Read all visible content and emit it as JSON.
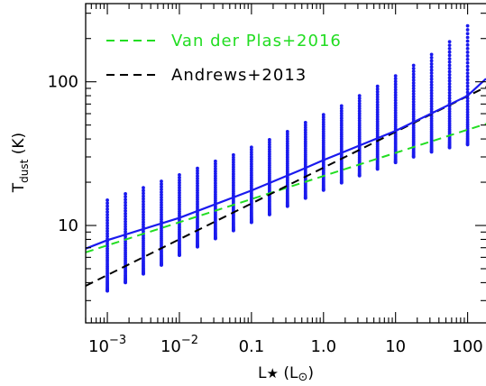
{
  "chart_data": {
    "type": "scatter",
    "xscale": "log",
    "yscale": "log",
    "xlim": [
      0.0005,
      180
    ],
    "ylim": [
      2.1,
      350
    ],
    "xticks": [
      {
        "value": 0.001,
        "mant": "10",
        "exp": "−3"
      },
      {
        "value": 0.01,
        "mant": "10",
        "exp": "−2"
      },
      {
        "value": 0.1,
        "mant": "0.1",
        "exp": ""
      },
      {
        "value": 1,
        "mant": "1.0",
        "exp": ""
      },
      {
        "value": 10,
        "mant": "10",
        "exp": ""
      },
      {
        "value": 100,
        "mant": "100",
        "exp": ""
      }
    ],
    "yticks": [
      {
        "value": 10,
        "label": "10"
      },
      {
        "value": 100,
        "label": "100"
      }
    ],
    "xlabel": {
      "main": "L",
      "star": "★",
      "unit_open": " (L",
      "sun": "⊙",
      "unit_close": ")"
    },
    "ylabel": {
      "main": "T",
      "sub": "dust",
      "unit": "  (K)"
    },
    "scatter": {
      "color": "#1a1aee",
      "x": [
        0.001,
        0.00178,
        0.00316,
        0.00562,
        0.01,
        0.0178,
        0.0316,
        0.0562,
        0.1,
        0.178,
        0.316,
        0.562,
        1,
        1.78,
        3.16,
        5.62,
        10,
        17.8,
        31.6,
        56.2,
        100
      ],
      "y_min": [
        3.5,
        4.0,
        4.6,
        5.3,
        6.2,
        7.1,
        8.1,
        9.2,
        10.5,
        11.9,
        13.6,
        15.5,
        17.6,
        19.8,
        22.2,
        24.7,
        27.4,
        30.0,
        32.5,
        34.8,
        36.5
      ],
      "y_max": [
        15,
        16.6,
        18.3,
        20.3,
        22.5,
        25,
        28,
        31,
        35,
        39.5,
        45,
        52,
        59,
        68,
        80,
        93,
        110,
        130,
        155,
        190,
        245
      ],
      "points_per_column": 45
    },
    "series": [
      {
        "name": "Van der Plas+2016",
        "color": "#22dd22",
        "style": "dashed",
        "x": [
          0.0005,
          180
        ],
        "y": [
          6.5,
          51
        ]
      },
      {
        "name": "Andrews+2013",
        "color": "#000000",
        "style": "dashed",
        "x": [
          0.0005,
          180
        ],
        "y": [
          3.8,
          92
        ]
      },
      {
        "name": "",
        "color": "#1a1aee",
        "style": "solid",
        "x": [
          0.0005,
          0.001,
          0.01,
          0.1,
          0.5,
          1,
          10,
          100,
          180
        ],
        "y": [
          6.9,
          7.9,
          11.3,
          17.5,
          24.5,
          28.5,
          45.5,
          80,
          105
        ]
      }
    ],
    "legend_position": "top-left",
    "grid": false
  }
}
